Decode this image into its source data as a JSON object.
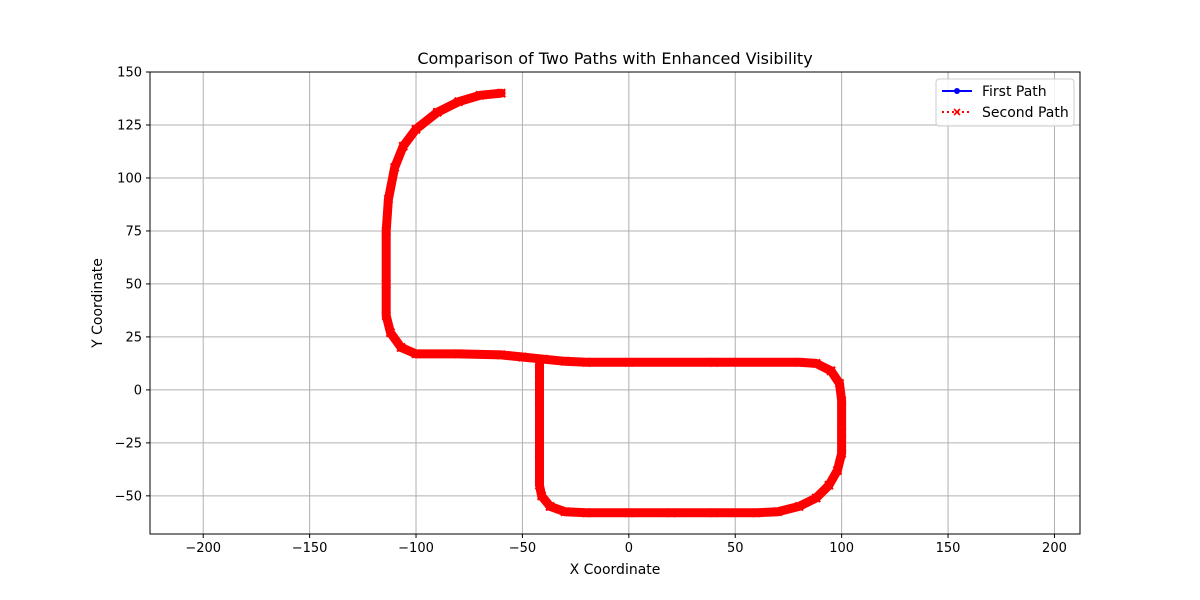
{
  "chart_data": {
    "type": "line",
    "title": "Comparison of Two Paths with Enhanced Visibility",
    "xlabel": "X Coordinate",
    "ylabel": "Y Coordinate",
    "xlim": [
      -225,
      212
    ],
    "ylim": [
      -68,
      150
    ],
    "xticks": [
      -200,
      -150,
      -100,
      -50,
      0,
      50,
      100,
      150,
      200
    ],
    "yticks": [
      -50,
      -25,
      0,
      25,
      50,
      75,
      100,
      125,
      150
    ],
    "xtick_labels": [
      "−200",
      "−150",
      "−100",
      "−50",
      "0",
      "50",
      "100",
      "150",
      "200"
    ],
    "ytick_labels": [
      "−50",
      "−25",
      "0",
      "25",
      "50",
      "75",
      "100",
      "125",
      "150"
    ],
    "grid": true,
    "legend_position": "top-right",
    "series": [
      {
        "name": "First Path",
        "color": "#0000ff",
        "line_style": "solid",
        "marker": "circle",
        "points": [
          [
            -60,
            140
          ],
          [
            -70,
            139
          ],
          [
            -80,
            136
          ],
          [
            -90,
            131
          ],
          [
            -100,
            123
          ],
          [
            -106,
            115
          ],
          [
            -110,
            105
          ],
          [
            -113,
            90
          ],
          [
            -114,
            75
          ],
          [
            -114,
            50
          ],
          [
            -114,
            35
          ],
          [
            -112,
            27
          ],
          [
            -107,
            20
          ],
          [
            -100,
            17
          ],
          [
            -80,
            17
          ],
          [
            -60,
            16.5
          ],
          [
            -50,
            15.5
          ],
          [
            -40,
            14.5
          ],
          [
            -30,
            13.5
          ],
          [
            -20,
            13
          ],
          [
            0,
            13
          ],
          [
            40,
            13
          ],
          [
            80,
            13
          ],
          [
            88,
            12.5
          ],
          [
            95,
            9
          ],
          [
            99,
            3
          ],
          [
            100,
            -5
          ],
          [
            100,
            -20
          ],
          [
            100,
            -30
          ],
          [
            98,
            -38
          ],
          [
            94,
            -45
          ],
          [
            88,
            -51
          ],
          [
            80,
            -55
          ],
          [
            70,
            -57.5
          ],
          [
            60,
            -58
          ],
          [
            40,
            -58
          ],
          [
            20,
            -58
          ],
          [
            0,
            -58
          ],
          [
            -20,
            -58
          ],
          [
            -30,
            -57.5
          ],
          [
            -37,
            -55
          ],
          [
            -41,
            -50
          ],
          [
            -42,
            -45
          ],
          [
            -42,
            -30
          ],
          [
            -42,
            -20
          ],
          [
            -42,
            -5
          ],
          [
            -42,
            5
          ],
          [
            -42,
            12
          ]
        ]
      },
      {
        "name": "Second Path",
        "color": "#ff0000",
        "line_style": "dotted",
        "marker": "x",
        "points": [
          [
            -60,
            140
          ],
          [
            -70,
            139
          ],
          [
            -80,
            136
          ],
          [
            -90,
            131
          ],
          [
            -100,
            123
          ],
          [
            -106,
            115
          ],
          [
            -110,
            105
          ],
          [
            -113,
            90
          ],
          [
            -114,
            75
          ],
          [
            -114,
            50
          ],
          [
            -114,
            35
          ],
          [
            -112,
            27
          ],
          [
            -107,
            20
          ],
          [
            -100,
            17
          ],
          [
            -80,
            17
          ],
          [
            -60,
            16.5
          ],
          [
            -50,
            15.5
          ],
          [
            -40,
            14.5
          ],
          [
            -30,
            13.5
          ],
          [
            -20,
            13
          ],
          [
            0,
            13
          ],
          [
            40,
            13
          ],
          [
            80,
            13
          ],
          [
            88,
            12.5
          ],
          [
            95,
            9
          ],
          [
            99,
            3
          ],
          [
            100,
            -5
          ],
          [
            100,
            -20
          ],
          [
            100,
            -30
          ],
          [
            98,
            -38
          ],
          [
            94,
            -45
          ],
          [
            88,
            -51
          ],
          [
            80,
            -55
          ],
          [
            70,
            -57.5
          ],
          [
            60,
            -58
          ],
          [
            40,
            -58
          ],
          [
            20,
            -58
          ],
          [
            0,
            -58
          ],
          [
            -20,
            -58
          ],
          [
            -30,
            -57.5
          ],
          [
            -37,
            -55
          ],
          [
            -41,
            -50
          ],
          [
            -42,
            -45
          ],
          [
            -42,
            -30
          ],
          [
            -42,
            -20
          ],
          [
            -42,
            -5
          ],
          [
            -42,
            5
          ],
          [
            -42,
            12
          ]
        ]
      }
    ]
  }
}
